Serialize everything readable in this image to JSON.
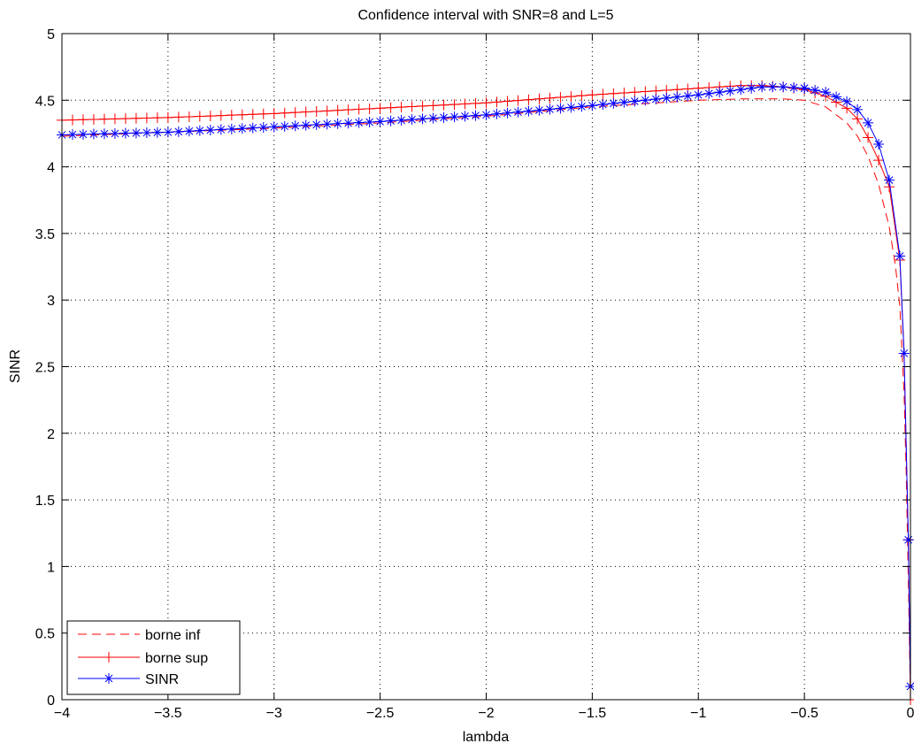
{
  "chart_data": {
    "type": "line",
    "title": "Confidence interval  with SNR=8 and L=5",
    "xlabel": "lambda",
    "ylabel": "SINR",
    "xlim": [
      -4,
      0
    ],
    "ylim": [
      0,
      5
    ],
    "xticks": [
      -4,
      -3.5,
      -3,
      -2.5,
      -2,
      -1.5,
      -1,
      -0.5,
      0
    ],
    "xtick_labels": [
      "−4",
      "−3.5",
      "−3",
      "−2.5",
      "−2",
      "−1.5",
      "−1",
      "−0.5",
      "0"
    ],
    "yticks": [
      0,
      0.5,
      1,
      1.5,
      2,
      2.5,
      3,
      3.5,
      4,
      4.5,
      5
    ],
    "ytick_labels": [
      "0",
      "0.5",
      "1",
      "1.5",
      "2",
      "2.5",
      "3",
      "3.5",
      "4",
      "4.5",
      "5"
    ],
    "grid": true,
    "legend_position": "bottom-left",
    "series": [
      {
        "name": "borne inf",
        "color": "#ff0000",
        "style": "dashed",
        "marker": "none",
        "x": [
          -4,
          -3.5,
          -3,
          -2.5,
          -2,
          -1.5,
          -1,
          -0.8,
          -0.6,
          -0.5,
          -0.4,
          -0.3,
          -0.25,
          -0.2,
          -0.15,
          -0.1,
          -0.07,
          -0.05,
          -0.03,
          -0.02,
          -0.01,
          0
        ],
        "y": [
          4.23,
          4.26,
          4.29,
          4.33,
          4.38,
          4.45,
          4.5,
          4.51,
          4.51,
          4.5,
          4.45,
          4.33,
          4.23,
          4.08,
          3.87,
          3.55,
          3.25,
          2.95,
          2.3,
          1.7,
          0.9,
          0
        ]
      },
      {
        "name": "borne sup",
        "color": "#ff0000",
        "style": "solid",
        "marker": "plus",
        "x": [
          -4,
          -3.5,
          -3,
          -2.5,
          -2,
          -1.5,
          -1,
          -0.8,
          -0.7,
          -0.6,
          -0.5,
          -0.4,
          -0.3,
          -0.25,
          -0.2,
          -0.15,
          -0.1,
          -0.05,
          -0.03,
          -0.01,
          0
        ],
        "y": [
          4.35,
          4.37,
          4.4,
          4.44,
          4.48,
          4.54,
          4.59,
          4.61,
          4.61,
          4.6,
          4.58,
          4.53,
          4.44,
          4.36,
          4.22,
          4.05,
          3.85,
          3.3,
          2.6,
          1.2,
          0
        ]
      },
      {
        "name": "SINR",
        "color": "#0000ff",
        "style": "solid",
        "marker": "star",
        "x": [
          -4,
          -3.5,
          -3,
          -2.5,
          -2,
          -1.5,
          -1,
          -0.8,
          -0.7,
          -0.6,
          -0.5,
          -0.4,
          -0.3,
          -0.25,
          -0.2,
          -0.15,
          -0.1,
          -0.05,
          -0.03,
          -0.01,
          0
        ],
        "y": [
          4.24,
          4.26,
          4.3,
          4.34,
          4.39,
          4.46,
          4.54,
          4.58,
          4.6,
          4.6,
          4.59,
          4.56,
          4.49,
          4.43,
          4.33,
          4.17,
          3.9,
          3.33,
          2.6,
          1.2,
          0.1
        ]
      }
    ]
  }
}
